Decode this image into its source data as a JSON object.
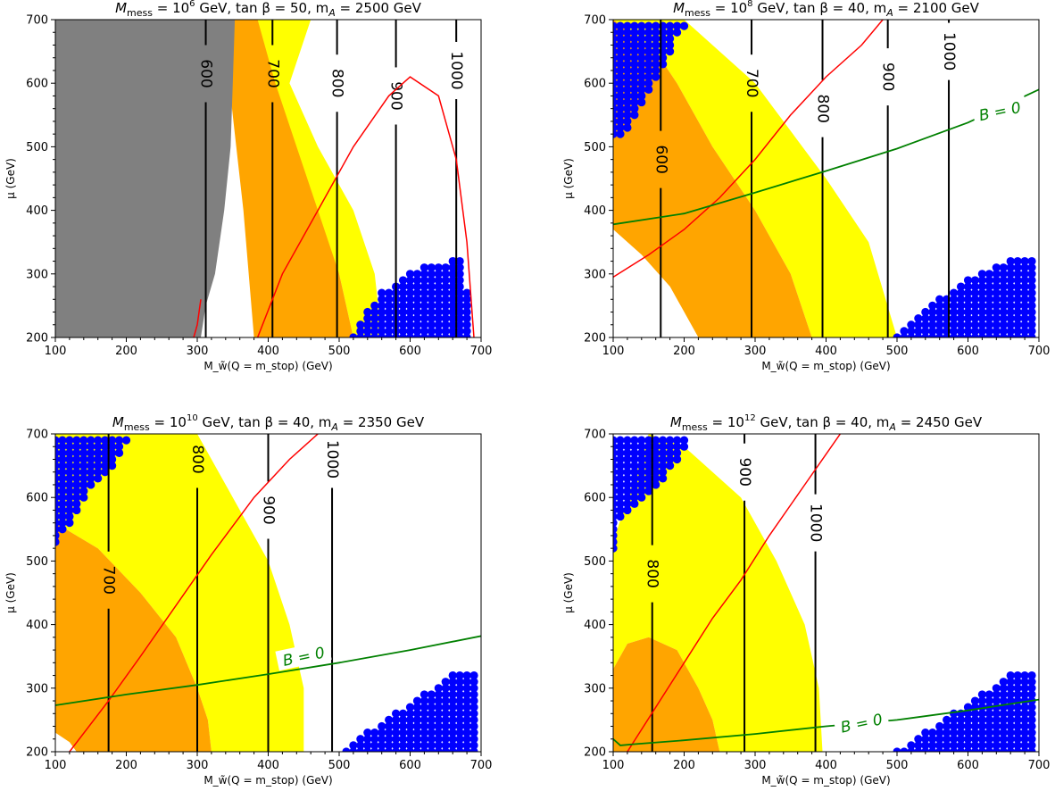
{
  "chart_data": [
    {
      "type": "contour",
      "title": "M_mess = 10^6 GeV, tan β = 50,  m_A = 2500 GeV",
      "title_parts": {
        "prefix": "M",
        "sub": "mess",
        "eq": " = 10",
        "exp": "6",
        "rest": " GeV, tan β = 50,  m",
        "sub2": "A",
        "tail": " = 2500 GeV"
      },
      "xlabel": "M_w̃(Q = m_stop) (GeV)",
      "ylabel": "μ (GeV)",
      "xlim": [
        100,
        700
      ],
      "ylim": [
        200,
        700
      ],
      "xticks": [
        100,
        200,
        300,
        400,
        500,
        600,
        700
      ],
      "yticks": [
        200,
        300,
        400,
        500,
        600,
        700
      ],
      "colors": {
        "gray": "#808080",
        "orange": "#ffa500",
        "yellow": "#ffff00",
        "blue": "#0000ff",
        "red": "#ff0000",
        "green": "#008000",
        "black": "#000000"
      },
      "gray_region": [
        [
          100,
          200
        ],
        [
          305,
          200
        ],
        [
          312,
          250
        ],
        [
          325,
          300
        ],
        [
          338,
          400
        ],
        [
          347,
          500
        ],
        [
          350,
          600
        ],
        [
          353,
          700
        ],
        [
          100,
          700
        ]
      ],
      "orange_region": [
        [
          330,
          700
        ],
        [
          345,
          600
        ],
        [
          355,
          500
        ],
        [
          365,
          400
        ],
        [
          380,
          200
        ],
        [
          520,
          200
        ],
        [
          500,
          300
        ],
        [
          470,
          400
        ],
        [
          440,
          500
        ],
        [
          410,
          600
        ],
        [
          385,
          700
        ]
      ],
      "yellow_region": [
        [
          380,
          700
        ],
        [
          400,
          600
        ],
        [
          420,
          500
        ],
        [
          450,
          400
        ],
        [
          500,
          300
        ],
        [
          520,
          200
        ],
        [
          560,
          200
        ],
        [
          550,
          300
        ],
        [
          520,
          400
        ],
        [
          470,
          500
        ],
        [
          430,
          600
        ],
        [
          460,
          700
        ]
      ],
      "red_curve": [
        [
          385,
          200
        ],
        [
          420,
          300
        ],
        [
          470,
          400
        ],
        [
          520,
          500
        ],
        [
          570,
          580
        ],
        [
          600,
          610
        ],
        [
          640,
          580
        ],
        [
          665,
          480
        ],
        [
          680,
          350
        ],
        [
          690,
          200
        ]
      ],
      "red_curve_b": [
        [
          295,
          200
        ],
        [
          300,
          220
        ],
        [
          305,
          260
        ]
      ],
      "contours": [
        {
          "label": "600",
          "x": 312,
          "x_top": 312
        },
        {
          "label": "700",
          "x": 406,
          "x_top": 406
        },
        {
          "label": "800",
          "x": 497,
          "x_top": 497
        },
        {
          "label": "900",
          "x": 580,
          "x_top": 580
        },
        {
          "label": "1000",
          "x": 665,
          "x_top": 665
        }
      ],
      "contour_label_y": [
        615,
        615,
        600,
        580,
        620
      ],
      "blue_edge": [
        [
          520,
          200
        ],
        [
          540,
          240
        ],
        [
          560,
          270
        ],
        [
          600,
          300
        ],
        [
          630,
          320
        ],
        [
          660,
          320
        ],
        [
          670,
          330
        ],
        [
          680,
          280
        ],
        [
          690,
          200
        ]
      ],
      "b0": null
    },
    {
      "type": "contour",
      "title": "M_mess = 10^8 GeV, tan β = 40,  m_A = 2100 GeV",
      "title_parts": {
        "prefix": "M",
        "sub": "mess",
        "eq": " = 10",
        "exp": "8",
        "rest": " GeV, tan β = 40,  m",
        "sub2": "A",
        "tail": " = 2100 GeV"
      },
      "xlabel": "M_w̃(Q = m_stop) (GeV)",
      "ylabel": "μ (GeV)",
      "xlim": [
        100,
        700
      ],
      "ylim": [
        200,
        700
      ],
      "xticks": [
        100,
        200,
        300,
        400,
        500,
        600,
        700
      ],
      "yticks": [
        200,
        300,
        400,
        500,
        600,
        700
      ],
      "gray_region": null,
      "orange_region": [
        [
          100,
          370
        ],
        [
          140,
          330
        ],
        [
          180,
          280
        ],
        [
          200,
          240
        ],
        [
          220,
          200
        ],
        [
          380,
          200
        ],
        [
          350,
          300
        ],
        [
          300,
          400
        ],
        [
          240,
          500
        ],
        [
          190,
          600
        ],
        [
          160,
          650
        ],
        [
          100,
          700
        ]
      ],
      "yellow_region": [
        [
          100,
          700
        ],
        [
          200,
          700
        ],
        [
          300,
          600
        ],
        [
          400,
          450
        ],
        [
          460,
          350
        ],
        [
          500,
          200
        ],
        [
          380,
          200
        ],
        [
          350,
          300
        ],
        [
          300,
          400
        ],
        [
          240,
          500
        ],
        [
          190,
          600
        ],
        [
          160,
          650
        ]
      ],
      "white_inner": [
        [
          100,
          200
        ],
        [
          220,
          200
        ],
        [
          200,
          240
        ],
        [
          180,
          280
        ],
        [
          140,
          330
        ],
        [
          100,
          370
        ]
      ],
      "red_curve": [
        [
          100,
          295
        ],
        [
          150,
          330
        ],
        [
          200,
          370
        ],
        [
          250,
          420
        ],
        [
          300,
          480
        ],
        [
          350,
          550
        ],
        [
          400,
          610
        ],
        [
          450,
          660
        ],
        [
          480,
          700
        ]
      ],
      "contours": [
        {
          "label": "600",
          "x": 167
        },
        {
          "label": "700",
          "x": 295
        },
        {
          "label": "800",
          "x": 395
        },
        {
          "label": "900",
          "x": 487
        },
        {
          "label": "1000",
          "x": 573
        }
      ],
      "contour_label_y": [
        480,
        600,
        560,
        610,
        650
      ],
      "blue_top_edge": [
        [
          100,
          700
        ],
        [
          210,
          700
        ],
        [
          190,
          670
        ],
        [
          170,
          620
        ],
        [
          140,
          560
        ],
        [
          115,
          520
        ],
        [
          100,
          510
        ]
      ],
      "blue_edge": [
        [
          500,
          200
        ],
        [
          530,
          230
        ],
        [
          560,
          260
        ],
        [
          600,
          290
        ],
        [
          640,
          310
        ],
        [
          680,
          330
        ],
        [
          700,
          330
        ],
        [
          700,
          200
        ]
      ],
      "b0": {
        "label": "B = 0",
        "points": [
          [
            100,
            378
          ],
          [
            200,
            395
          ],
          [
            300,
            428
          ],
          [
            400,
            462
          ],
          [
            500,
            497
          ],
          [
            600,
            538
          ],
          [
            700,
            590
          ]
        ],
        "label_at": [
          645,
          556
        ]
      }
    },
    {
      "type": "contour",
      "title": "M_mess = 10^10 GeV, tan β = 40,  m_A = 2350 GeV",
      "title_parts": {
        "prefix": "M",
        "sub": "mess",
        "eq": " = 10",
        "exp": "10",
        "rest": " GeV, tan β = 40,  m",
        "sub2": "A",
        "tail": " = 2350 GeV"
      },
      "xlabel": "M_w̃(Q = m_stop) (GeV)",
      "ylabel": "μ (GeV)",
      "xlim": [
        100,
        700
      ],
      "ylim": [
        200,
        700
      ],
      "xticks": [
        100,
        200,
        300,
        400,
        500,
        600,
        700
      ],
      "yticks": [
        200,
        300,
        400,
        500,
        600,
        700
      ],
      "gray_region": null,
      "orange_region": [
        [
          100,
          560
        ],
        [
          160,
          520
        ],
        [
          220,
          450
        ],
        [
          270,
          380
        ],
        [
          300,
          300
        ],
        [
          315,
          250
        ],
        [
          320,
          200
        ],
        [
          100,
          200
        ]
      ],
      "yellow_region": [
        [
          100,
          700
        ],
        [
          300,
          700
        ],
        [
          350,
          600
        ],
        [
          400,
          500
        ],
        [
          430,
          400
        ],
        [
          450,
          300
        ],
        [
          450,
          200
        ],
        [
          320,
          200
        ],
        [
          315,
          250
        ],
        [
          300,
          300
        ],
        [
          270,
          380
        ],
        [
          220,
          450
        ],
        [
          160,
          520
        ],
        [
          100,
          560
        ]
      ],
      "white_inner": [
        [
          100,
          200
        ],
        [
          130,
          200
        ],
        [
          120,
          215
        ],
        [
          100,
          230
        ]
      ],
      "red_curve": [
        [
          120,
          200
        ],
        [
          175,
          280
        ],
        [
          220,
          350
        ],
        [
          270,
          430
        ],
        [
          320,
          510
        ],
        [
          380,
          600
        ],
        [
          430,
          660
        ],
        [
          470,
          700
        ]
      ],
      "contours": [
        {
          "label": "700",
          "x": 175
        },
        {
          "label": "800",
          "x": 300
        },
        {
          "label": "900",
          "x": 400
        },
        {
          "label": "1000",
          "x": 490
        }
      ],
      "contour_label_y": [
        470,
        660,
        580,
        660
      ],
      "blue_top_edge": [
        [
          100,
          700
        ],
        [
          210,
          700
        ],
        [
          190,
          660
        ],
        [
          150,
          610
        ],
        [
          130,
          570
        ],
        [
          110,
          540
        ],
        [
          100,
          520
        ]
      ],
      "blue_edge": [
        [
          510,
          200
        ],
        [
          540,
          230
        ],
        [
          580,
          260
        ],
        [
          620,
          290
        ],
        [
          660,
          320
        ],
        [
          700,
          330
        ],
        [
          700,
          200
        ]
      ],
      "b0": {
        "label": "B = 0",
        "points": [
          [
            100,
            273
          ],
          [
            200,
            290
          ],
          [
            300,
            305
          ],
          [
            400,
            322
          ],
          [
            500,
            340
          ],
          [
            600,
            360
          ],
          [
            700,
            382
          ]
        ],
        "label_at": [
          450,
          350
        ]
      }
    },
    {
      "type": "contour",
      "title": "M_mess = 10^12 GeV, tan β = 40,  m_A = 2450 GeV",
      "title_parts": {
        "prefix": "M",
        "sub": "mess",
        "eq": " = 10",
        "exp": "12",
        "rest": " GeV, tan β = 40,  m",
        "sub2": "A",
        "tail": " = 2450 GeV"
      },
      "xlabel": "M_w̃(Q = m_stop) (GeV)",
      "ylabel": "μ (GeV)",
      "xlim": [
        100,
        700
      ],
      "ylim": [
        200,
        700
      ],
      "xticks": [
        100,
        200,
        300,
        400,
        500,
        600,
        700
      ],
      "yticks": [
        200,
        300,
        400,
        500,
        600,
        700
      ],
      "gray_region": null,
      "orange_region": [
        [
          100,
          330
        ],
        [
          120,
          370
        ],
        [
          150,
          380
        ],
        [
          190,
          360
        ],
        [
          220,
          300
        ],
        [
          240,
          250
        ],
        [
          250,
          200
        ],
        [
          100,
          200
        ]
      ],
      "yellow_region": [
        [
          150,
          700
        ],
        [
          200,
          680
        ],
        [
          280,
          600
        ],
        [
          330,
          500
        ],
        [
          370,
          400
        ],
        [
          390,
          300
        ],
        [
          395,
          200
        ],
        [
          250,
          200
        ],
        [
          240,
          250
        ],
        [
          220,
          300
        ],
        [
          190,
          360
        ],
        [
          150,
          380
        ],
        [
          120,
          370
        ],
        [
          100,
          330
        ],
        [
          100,
          530
        ]
      ],
      "white_inner": null,
      "red_curve": [
        [
          120,
          200
        ],
        [
          160,
          270
        ],
        [
          200,
          340
        ],
        [
          240,
          410
        ],
        [
          280,
          470
        ],
        [
          320,
          540
        ],
        [
          370,
          620
        ],
        [
          420,
          700
        ]
      ],
      "contours": [
        {
          "label": "800",
          "x": 155
        },
        {
          "label": "900",
          "x": 285
        },
        {
          "label": "1000",
          "x": 385
        }
      ],
      "contour_label_y": [
        480,
        640,
        560
      ],
      "blue_top_edge": [
        [
          100,
          700
        ],
        [
          210,
          700
        ],
        [
          200,
          670
        ],
        [
          180,
          640
        ],
        [
          150,
          600
        ],
        [
          130,
          580
        ],
        [
          110,
          560
        ],
        [
          100,
          510
        ]
      ],
      "blue_edge": [
        [
          500,
          200
        ],
        [
          540,
          230
        ],
        [
          580,
          260
        ],
        [
          620,
          290
        ],
        [
          660,
          320
        ],
        [
          700,
          330
        ],
        [
          700,
          200
        ]
      ],
      "b0": {
        "label": "B = 0",
        "points": [
          [
            100,
            220
          ],
          [
            110,
            210
          ],
          [
            130,
            212
          ],
          [
            200,
            218
          ],
          [
            300,
            228
          ],
          [
            400,
            240
          ],
          [
            500,
            250
          ],
          [
            600,
            265
          ],
          [
            700,
            282
          ]
        ],
        "label_at": [
          450,
          245
        ]
      }
    }
  ]
}
